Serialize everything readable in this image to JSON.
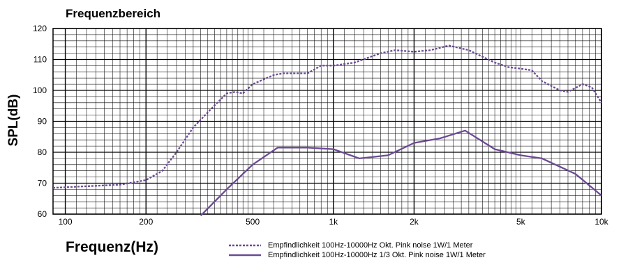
{
  "chart_data": {
    "type": "line",
    "title": "Frequenzbereich",
    "xlabel": "Frequenz(Hz)",
    "ylabel": "SPL(dB)",
    "x_scale": "log",
    "xlim": [
      90,
      10000
    ],
    "ylim": [
      60,
      120
    ],
    "x_ticks": [
      {
        "value": 100,
        "label": "100"
      },
      {
        "value": 200,
        "label": "200"
      },
      {
        "value": 500,
        "label": "500"
      },
      {
        "value": 1000,
        "label": "1k"
      },
      {
        "value": 2000,
        "label": "2k"
      },
      {
        "value": 5000,
        "label": "5k"
      },
      {
        "value": 10000,
        "label": "10k"
      }
    ],
    "y_ticks": [
      60,
      70,
      80,
      90,
      100,
      110,
      120
    ],
    "grid": true,
    "legend_position": "bottom",
    "series": [
      {
        "name": "Empfindlichkeit 100Hz-10000Hz Okt. Pink noise 1W/1 Meter",
        "style": "dotted",
        "color": "#6a4a94",
        "points": [
          [
            90,
            68.5
          ],
          [
            120,
            69
          ],
          [
            160,
            69.5
          ],
          [
            200,
            71
          ],
          [
            230,
            74
          ],
          [
            260,
            80
          ],
          [
            300,
            88
          ],
          [
            350,
            94
          ],
          [
            400,
            99
          ],
          [
            430,
            99.5
          ],
          [
            460,
            99
          ],
          [
            500,
            102
          ],
          [
            600,
            105
          ],
          [
            650,
            105.5
          ],
          [
            700,
            105.5
          ],
          [
            800,
            105.5
          ],
          [
            900,
            108
          ],
          [
            1000,
            108
          ],
          [
            1200,
            109
          ],
          [
            1500,
            112
          ],
          [
            1700,
            113
          ],
          [
            2000,
            112.5
          ],
          [
            2300,
            113
          ],
          [
            2700,
            114.5
          ],
          [
            3200,
            113
          ],
          [
            4000,
            109
          ],
          [
            4500,
            107.5
          ],
          [
            5000,
            107
          ],
          [
            5500,
            106.5
          ],
          [
            6000,
            103
          ],
          [
            7000,
            100
          ],
          [
            7500,
            99.5
          ],
          [
            8500,
            102
          ],
          [
            9200,
            101
          ],
          [
            10000,
            96
          ]
        ]
      },
      {
        "name": "Empfindlichkeit 100Hz-10000Hz 1/3 Okt. Pink noise 1W/1 Meter",
        "style": "solid",
        "color": "#6a4a94",
        "points": [
          [
            320,
            59.5
          ],
          [
            400,
            68
          ],
          [
            500,
            76
          ],
          [
            620,
            81.5
          ],
          [
            800,
            81.5
          ],
          [
            1000,
            81
          ],
          [
            1250,
            78
          ],
          [
            1600,
            79
          ],
          [
            2000,
            83
          ],
          [
            2500,
            84.5
          ],
          [
            3100,
            87
          ],
          [
            4000,
            81
          ],
          [
            5000,
            79
          ],
          [
            6000,
            78
          ],
          [
            8000,
            73
          ],
          [
            10000,
            66
          ]
        ]
      }
    ]
  }
}
